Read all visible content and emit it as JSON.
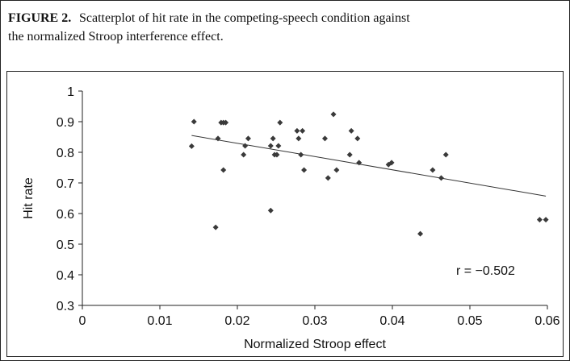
{
  "chart_data": {
    "type": "scatter",
    "title": "FIGURE 2.",
    "subtitle": [
      "Scatterplot of hit rate in the competing-speech condition against",
      "the normalized Stroop interference effect."
    ],
    "xlabel": "Normalized Stroop effect",
    "ylabel": "Hit rate",
    "annotation": "r = −0.502",
    "color": "#3a3a3a",
    "xlim": [
      0,
      0.06
    ],
    "xticks": [
      0,
      0.01,
      0.02,
      0.03,
      0.04,
      0.05,
      0.06
    ],
    "ylim": [
      0.3,
      1
    ],
    "yticks": [
      0.3,
      0.4,
      0.5,
      0.6,
      0.7,
      0.8,
      0.9,
      1
    ],
    "x": [
      0.0141,
      0.0144,
      0.0172,
      0.0175,
      0.0179,
      0.0182,
      0.0185,
      0.0182,
      0.0208,
      0.021,
      0.0214,
      0.0243,
      0.0243,
      0.0246,
      0.0248,
      0.0251,
      0.0253,
      0.0255,
      0.0277,
      0.0284,
      0.0279,
      0.0282,
      0.0286,
      0.0313,
      0.0317,
      0.0324,
      0.0328,
      0.0345,
      0.0347,
      0.0355,
      0.0357,
      0.0395,
      0.0399,
      0.0436,
      0.0452,
      0.0463,
      0.0469,
      0.059,
      0.0598
    ],
    "values": [
      0.82,
      0.9,
      0.555,
      0.845,
      0.897,
      0.897,
      0.897,
      0.742,
      0.792,
      0.821,
      0.845,
      0.821,
      0.61,
      0.845,
      0.792,
      0.792,
      0.821,
      0.897,
      0.87,
      0.87,
      0.845,
      0.792,
      0.742,
      0.845,
      0.716,
      0.924,
      0.742,
      0.792,
      0.87,
      0.845,
      0.766,
      0.76,
      0.766,
      0.534,
      0.742,
      0.716,
      0.792,
      0.58,
      0.58
    ],
    "trendline": {
      "x": [
        0.0141,
        0.0598
      ],
      "y": [
        0.855,
        0.657
      ]
    }
  }
}
